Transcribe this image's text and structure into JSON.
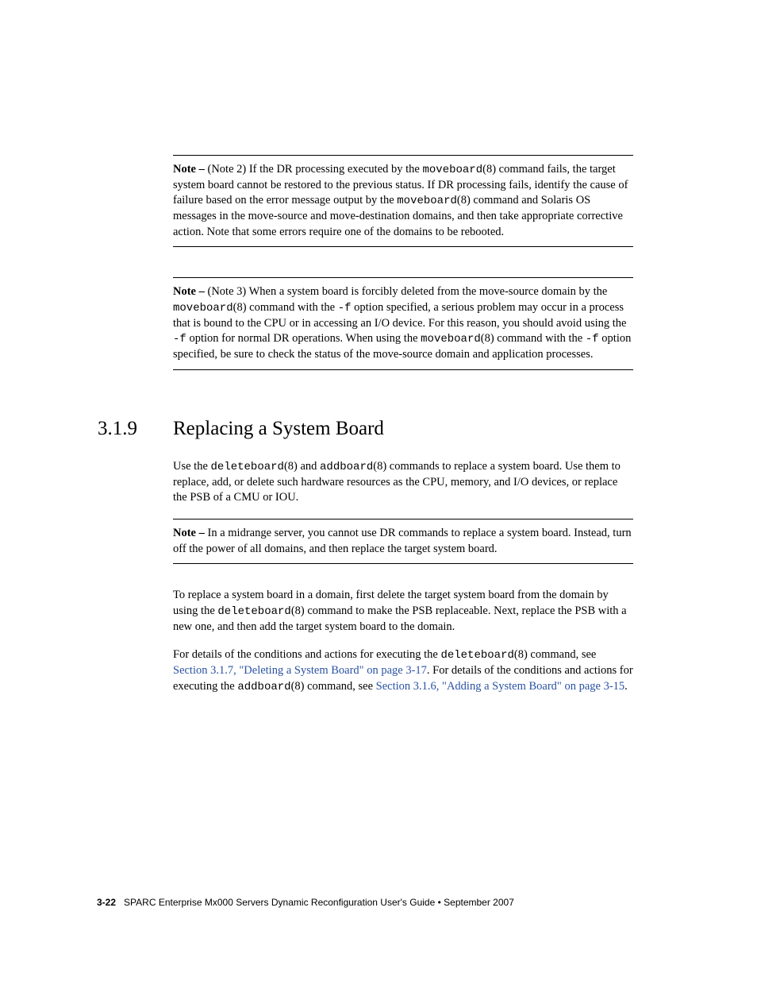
{
  "notes": {
    "note1": {
      "label": "Note –",
      "part1": " (Note 2) If the DR processing executed by the ",
      "code1": "moveboard",
      "part2": "(8) command fails, the target system board cannot be restored to the previous status. If DR processing fails, identify the cause of failure based on the error message output by the ",
      "code2": "moveboard",
      "part3": "(8) command and Solaris OS messages in the move-source and move-destination domains, and then take appropriate corrective action. Note that some errors require one of the domains to be rebooted."
    },
    "note2": {
      "label": "Note –",
      "part1": " (Note 3) When a system board is forcibly deleted from the move-source domain by the ",
      "code1": "moveboard",
      "part2": "(8) command with the ",
      "code2": "-f",
      "part3": " option specified, a serious problem may occur in a process that is bound to the CPU or in accessing an I/O device. For this reason, you should avoid using the ",
      "code3": "-f",
      "part4": " option for normal DR operations. When using the ",
      "code4": "moveboard",
      "part5": "(8) command with the ",
      "code5": "-f",
      "part6": " option specified, be sure to check the status of the move-source domain and application processes."
    },
    "note3": {
      "label": "Note –",
      "text": " In a midrange server, you cannot use DR commands to replace a system board. Instead, turn off the power of all domains, and then replace the target system board."
    }
  },
  "section": {
    "number": "3.1.9",
    "title": "Replacing a System Board"
  },
  "paragraphs": {
    "p1": {
      "part1": "Use the ",
      "code1": "deleteboard",
      "part2": "(8) and ",
      "code2": "addboard",
      "part3": "(8) commands to replace a system board. Use them to replace, add, or delete such hardware resources as the CPU, memory, and I/O devices, or replace the PSB of a CMU or IOU."
    },
    "p2": {
      "part1": "To replace a system board in a domain, first delete the target system board from the domain by using the ",
      "code1": "deleteboard",
      "part2": "(8) command to make the PSB replaceable. Next, replace the PSB with a new one, and then add the target system board to the domain."
    },
    "p3": {
      "part1": "For details of the conditions and actions for executing the ",
      "code1": "deleteboard",
      "part2": "(8) command, see ",
      "link1": "Section 3.1.7, \"Deleting a System Board\" on page 3-17",
      "part3": ". For details of the conditions and actions for executing the ",
      "code2": "addboard",
      "part4": "(8) command, see ",
      "link2": "Section 3.1.6, \"Adding a System Board\" on page 3-15",
      "part5": "."
    }
  },
  "footer": {
    "page": "3-22",
    "title": "SPARC Enterprise Mx000 Servers Dynamic Reconfiguration User's Guide  •  September 2007"
  }
}
